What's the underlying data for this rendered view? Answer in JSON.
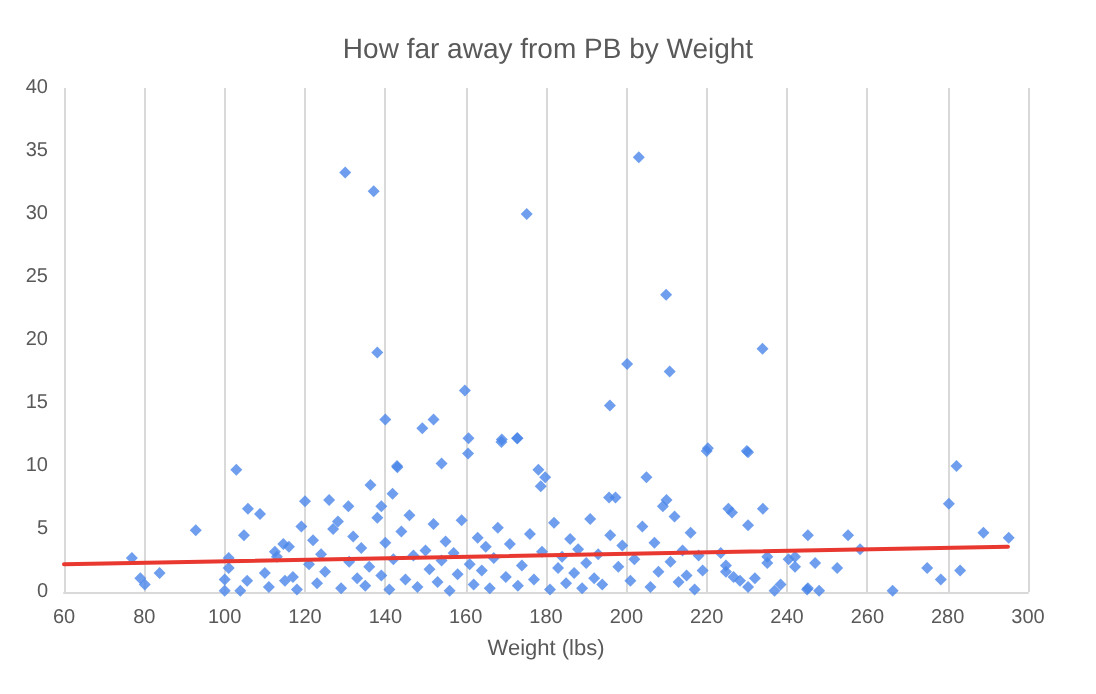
{
  "chart_data": {
    "type": "scatter",
    "title": "How far away from PB by Weight",
    "xlabel": "Weight (lbs)",
    "xlim": [
      60,
      300
    ],
    "xticks": [
      60,
      80,
      100,
      120,
      140,
      160,
      180,
      200,
      220,
      240,
      260,
      280,
      300
    ],
    "ylim": [
      0,
      40
    ],
    "yticks": [
      0,
      5,
      10,
      15,
      20,
      25,
      30,
      35,
      40
    ],
    "grid": "x",
    "marker": "diamond",
    "series": [
      {
        "color": "#4a86e8",
        "x": [
          76.9,
          79,
          80.1,
          83.8,
          92.8,
          102.9,
          105.8,
          108.8,
          104.8,
          101,
          101,
          100,
          100,
          103.9,
          105.6,
          120,
          119.1,
          126,
          128.2,
          130.8,
          136.3,
          139,
          141.8,
          142.9,
          114.6,
          112.5,
          130,
          137.1,
          175.2,
          138,
          159.8,
          140,
          149.2,
          152,
          160.7,
          172.8,
          169,
          203.1,
          209.9,
          200.2,
          210.8,
          233.9,
          195.9,
          220,
          230,
          168.9,
          172.9,
          160.6,
          154,
          143,
          178.1,
          179.8,
          178.7,
          205,
          220.3,
          225.4,
          195.7,
          197.3,
          209.1,
          210,
          230.3,
          226.3,
          234,
          230.3,
          245.2,
          255.2,
          258.2,
          247,
          252.5,
          235.1,
          235.1,
          240.4,
          242,
          242,
          224.8,
          224.8,
          226.7,
          228.3,
          230.3,
          232,
          236.9,
          238.4,
          245.2,
          245,
          248,
          266.3,
          274.9,
          278.3,
          280.3,
          282.2,
          283.1,
          288.9,
          295.2,
          223.5,
          110,
          111,
          113,
          115,
          116,
          117,
          118,
          121,
          122,
          123,
          124,
          125,
          127,
          129,
          131,
          132,
          133,
          134,
          135,
          136,
          138,
          139,
          140,
          141,
          142,
          144,
          145,
          146,
          147,
          148,
          150,
          151,
          152,
          153,
          154,
          155,
          156,
          157,
          158,
          159,
          161,
          162,
          163,
          164,
          165,
          166,
          167,
          168,
          170,
          171,
          173,
          174,
          176,
          177,
          179,
          181,
          182,
          183,
          184,
          185,
          186,
          187,
          188,
          189,
          190,
          191,
          192,
          193,
          194,
          196,
          198,
          199,
          201,
          202,
          204,
          206,
          207,
          208,
          211,
          212,
          213,
          214,
          215,
          216,
          217,
          218,
          219
        ],
        "values": [
          2.7,
          1.1,
          0.6,
          1.5,
          4.9,
          9.7,
          6.6,
          6.2,
          4.5,
          2.7,
          1.9,
          1.0,
          0.1,
          0.1,
          0.9,
          7.2,
          5.2,
          7.3,
          5.6,
          6.8,
          8.5,
          6.8,
          7.8,
          10.0,
          3.8,
          3.2,
          33.3,
          31.8,
          30.0,
          19.0,
          16.0,
          13.7,
          13.0,
          13.7,
          12.2,
          12.2,
          12.1,
          34.5,
          23.6,
          18.1,
          17.5,
          19.3,
          14.8,
          11.2,
          11.2,
          11.9,
          12.2,
          11.0,
          10.2,
          9.9,
          9.7,
          9.1,
          8.4,
          9.1,
          11.4,
          6.6,
          7.5,
          7.5,
          6.8,
          7.3,
          11.1,
          6.3,
          6.6,
          5.3,
          4.5,
          4.5,
          3.4,
          2.3,
          1.9,
          2.8,
          2.3,
          2.6,
          2.8,
          2.0,
          2.1,
          1.6,
          1.2,
          0.9,
          0.4,
          1.1,
          0.1,
          0.6,
          0.3,
          0.2,
          0.1,
          0.1,
          1.9,
          1.0,
          7.0,
          10.0,
          1.7,
          4.7,
          4.3,
          3.1,
          1.5,
          0.4,
          2.8,
          0.9,
          3.6,
          1.2,
          0.2,
          2.2,
          4.1,
          0.7,
          3.0,
          1.6,
          5.0,
          0.3,
          2.4,
          4.4,
          1.1,
          3.5,
          0.5,
          2.0,
          5.9,
          1.3,
          3.9,
          0.2,
          2.6,
          4.8,
          1.0,
          6.1,
          2.9,
          0.4,
          3.3,
          1.8,
          5.4,
          0.8,
          2.5,
          4.0,
          0.1,
          3.1,
          1.4,
          5.7,
          2.2,
          0.6,
          4.3,
          1.7,
          3.6,
          0.3,
          2.7,
          5.1,
          1.2,
          3.8,
          0.5,
          2.1,
          4.6,
          1.0,
          3.2,
          0.2,
          5.5,
          1.9,
          2.8,
          0.7,
          4.2,
          1.5,
          3.4,
          0.3,
          2.3,
          5.8,
          1.1,
          3.0,
          0.6,
          4.5,
          2.0,
          3.7,
          0.9,
          2.6,
          5.2,
          0.4,
          3.9,
          1.6,
          2.4,
          6.0,
          0.8,
          3.3,
          1.3,
          4.7,
          0.2,
          2.9,
          1.7
        ]
      },
      {
        "type": "line",
        "color": "#e8382f",
        "x": [
          60,
          295
        ],
        "values": [
          2.2,
          3.6
        ],
        "marker": "none"
      }
    ]
  }
}
